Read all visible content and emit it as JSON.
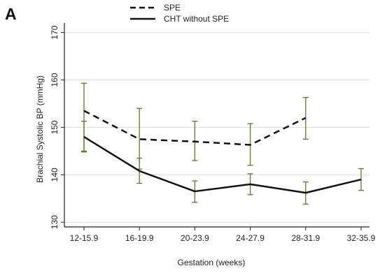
{
  "panel_label": "A",
  "colors": {
    "line": "#111111",
    "error_bar": "#5a7a2e",
    "grid": "#d9d9d9",
    "axis": "#222222"
  },
  "chart_data": {
    "type": "line",
    "title": "",
    "xlabel": "Gestation (weeks)",
    "ylabel": "Brachial Systolic BP (mmHg)",
    "categories": [
      "12-15.9",
      "16-19.9",
      "20-23.9",
      "24-27.9",
      "28-31.9",
      "32-35.9"
    ],
    "ylim": [
      129,
      172
    ],
    "yticks": [
      130,
      140,
      150,
      160,
      170
    ],
    "grid": true,
    "legend_position": "top-center",
    "series": [
      {
        "name": "SPE",
        "style": "dashed",
        "values": [
          153.5,
          147.5,
          147.0,
          146.3,
          152.0,
          null
        ],
        "ci_low": [
          145.0,
          141.2,
          143.0,
          142.0,
          147.5,
          null
        ],
        "ci_high": [
          159.3,
          154.0,
          151.3,
          150.8,
          156.3,
          null
        ]
      },
      {
        "name": "CHT  without SPE",
        "style": "solid",
        "values": [
          148.0,
          140.8,
          136.5,
          138.0,
          136.2,
          139.0
        ],
        "ci_low": [
          144.8,
          138.2,
          134.2,
          135.8,
          133.8,
          136.7
        ],
        "ci_high": [
          151.3,
          143.5,
          138.7,
          140.2,
          138.5,
          141.3
        ]
      }
    ]
  }
}
